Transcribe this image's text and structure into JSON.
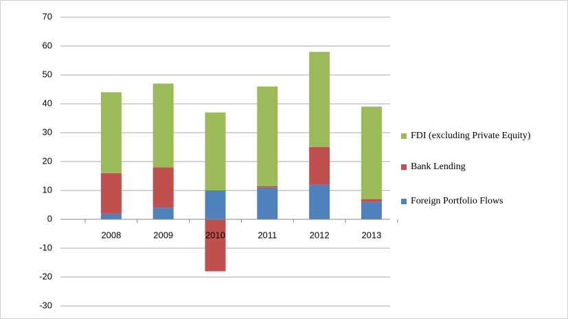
{
  "chart_data": {
    "type": "stacked-bar",
    "categories": [
      "2008",
      "2009",
      "2010",
      "2011",
      "2012",
      "2013"
    ],
    "series": [
      {
        "name": "Foreign Portfolio Flows",
        "color": "#4f81bd",
        "values": [
          2,
          4,
          10,
          11,
          12,
          6
        ]
      },
      {
        "name": "Bank Lending",
        "color": "#c0504d",
        "values": [
          14,
          14,
          -18,
          0.5,
          13,
          1
        ]
      },
      {
        "name": "FDI (excluding Private Equity)",
        "color": "#9bbb59",
        "values": [
          28,
          29,
          27,
          34.5,
          33,
          32
        ]
      }
    ],
    "ylim": [
      -30,
      70
    ],
    "yticks": [
      -30,
      -20,
      -10,
      0,
      10,
      20,
      30,
      40,
      50,
      60,
      70
    ],
    "grid": true,
    "legend": "right"
  }
}
